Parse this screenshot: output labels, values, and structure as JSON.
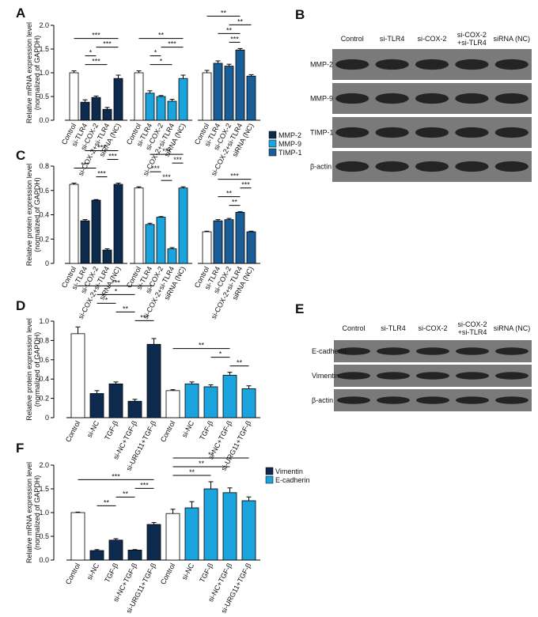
{
  "chart_data": [
    {
      "type": "bar",
      "panel_label": "A",
      "ylabel": [
        "Relative mRNA expression level",
        "(normalized of GAPDH)"
      ],
      "categories": [
        "Control",
        "si-TLR4",
        "si-COX-2",
        "si-COX-2+si-TLR4",
        "siRNA (NC)"
      ],
      "control_color": "#ffffff",
      "series": [
        {
          "name": "MMP-2",
          "color": "#0d2b4e",
          "values": [
            1.0,
            0.38,
            0.48,
            0.23,
            0.88
          ],
          "errors": [
            0.04,
            0.05,
            0.03,
            0.04,
            0.07
          ]
        },
        {
          "name": "MMP-9",
          "color": "#1aa3dc",
          "values": [
            1.0,
            0.57,
            0.5,
            0.4,
            0.88
          ],
          "errors": [
            0.04,
            0.05,
            0.02,
            0.04,
            0.07
          ]
        },
        {
          "name": "TIMP-1",
          "color": "#1a5e99",
          "values": [
            1.0,
            1.2,
            1.14,
            1.48,
            0.93
          ],
          "errors": [
            0.05,
            0.05,
            0.04,
            0.03,
            0.03
          ]
        }
      ],
      "ylim": [
        0,
        2
      ],
      "yticks": [
        {
          "value": 0,
          "label": "0.0"
        },
        0.5,
        {
          "value": 1,
          "label": "1.0"
        },
        1.5,
        {
          "value": 2,
          "label": "2.0"
        }
      ],
      "legend": false,
      "annotations": [
        {
          "series": 0,
          "between": [
            0,
            4
          ],
          "label": "***"
        },
        {
          "series": 0,
          "between": [
            2,
            4
          ],
          "label": "***"
        },
        {
          "series": 0,
          "between": [
            1,
            2
          ],
          "label": "*"
        },
        {
          "series": 0,
          "between": [
            1,
            3
          ],
          "label": "***"
        },
        {
          "series": 1,
          "between": [
            0,
            4
          ],
          "label": "**"
        },
        {
          "series": 1,
          "between": [
            2,
            4
          ],
          "label": "***"
        },
        {
          "series": 1,
          "between": [
            1,
            2
          ],
          "label": "*"
        },
        {
          "series": 1,
          "between": [
            1,
            3
          ],
          "label": "*"
        },
        {
          "series": 2,
          "between": [
            0,
            3
          ],
          "label": "**"
        },
        {
          "series": 2,
          "between": [
            2,
            4
          ],
          "label": "**"
        },
        {
          "series": 2,
          "between": [
            1,
            3
          ],
          "label": "**"
        },
        {
          "series": 2,
          "between": [
            2,
            3
          ],
          "label": "***"
        }
      ]
    },
    {
      "type": "bar",
      "panel_label": "C",
      "ylabel": [
        "Relative protein expression level",
        "(normalized of GAPDH)"
      ],
      "categories": [
        "Control",
        "si-TLR4",
        "si-COX-2",
        "si-COX-2+si-TLR4",
        "siRNA (NC)"
      ],
      "control_color": "#ffffff",
      "series": [
        {
          "name": "MMP-2",
          "color": "#0d2b4e",
          "values": [
            0.65,
            0.35,
            0.52,
            0.11,
            0.65
          ],
          "errors": [
            0.01,
            0.01,
            0.005,
            0.01,
            0.01
          ]
        },
        {
          "name": "MMP-9",
          "color": "#1aa3dc",
          "values": [
            0.62,
            0.32,
            0.38,
            0.12,
            0.62
          ],
          "errors": [
            0.01,
            0.01,
            0.005,
            0.01,
            0.01
          ]
        },
        {
          "name": "TIMP-1",
          "color": "#1a5e99",
          "values": [
            0.26,
            0.35,
            0.36,
            0.42,
            0.26
          ],
          "errors": [
            0.005,
            0.01,
            0.01,
            0.005,
            0.005
          ]
        }
      ],
      "ylim": [
        0,
        0.8
      ],
      "yticks": [
        0,
        0.2,
        0.4,
        0.6,
        0.8
      ],
      "legend": true,
      "annotations": [
        {
          "series": 0,
          "between": [
            1,
            4
          ],
          "label": "***"
        },
        {
          "series": 0,
          "between": [
            3,
            4
          ],
          "label": "***"
        },
        {
          "series": 0,
          "between": [
            0,
            2
          ],
          "label": "***"
        },
        {
          "series": 0,
          "between": [
            2,
            3
          ],
          "label": "***"
        },
        {
          "series": 1,
          "between": [
            1,
            4
          ],
          "label": "***"
        },
        {
          "series": 1,
          "between": [
            3,
            4
          ],
          "label": "***"
        },
        {
          "series": 1,
          "between": [
            1,
            2
          ],
          "label": "***"
        },
        {
          "series": 1,
          "between": [
            2,
            3
          ],
          "label": "***"
        },
        {
          "series": 2,
          "between": [
            1,
            4
          ],
          "label": "***"
        },
        {
          "series": 2,
          "between": [
            3,
            4
          ],
          "label": "***"
        },
        {
          "series": 2,
          "between": [
            1,
            3
          ],
          "label": "**"
        },
        {
          "series": 2,
          "between": [
            2,
            3
          ],
          "label": "**"
        }
      ]
    },
    {
      "type": "bar",
      "panel_label": "D",
      "ylabel": [
        "Relative protein expression level",
        "(normalized of GAPDH)"
      ],
      "categories": [
        "Control",
        "si-NC",
        "TGF-β",
        "si-NC+TGF-β",
        "si-URG11+TGF-β"
      ],
      "control_color": "#ffffff",
      "series": [
        {
          "name": "Vimentin",
          "color": "#0d2b4e",
          "values": [
            0.87,
            0.25,
            0.35,
            0.17,
            0.76
          ],
          "errors": [
            0.07,
            0.03,
            0.02,
            0.02,
            0.06
          ]
        },
        {
          "name": "E-cadherin",
          "color": "#1aa3dc",
          "values": [
            0.28,
            0.35,
            0.32,
            0.44,
            0.3
          ],
          "errors": [
            0.01,
            0.02,
            0.02,
            0.03,
            0.03
          ]
        }
      ],
      "ylim": [
        0,
        1
      ],
      "yticks": [
        0,
        0.2,
        0.4,
        0.6,
        0.8,
        {
          "value": 1,
          "label": "1.0"
        }
      ],
      "legend": false,
      "annotations": [
        {
          "series": 0,
          "between": [
            0,
            4
          ],
          "label": "***"
        },
        {
          "series": 0,
          "between": [
            1,
            3
          ],
          "label": "*"
        },
        {
          "series": 0,
          "between": [
            1,
            2
          ],
          "label": "*"
        },
        {
          "series": 0,
          "between": [
            2,
            3
          ],
          "label": "**"
        },
        {
          "series": 0,
          "between": [
            3,
            4
          ],
          "label": "***"
        },
        {
          "series": 1,
          "between": [
            0,
            3
          ],
          "label": "**"
        },
        {
          "series": 1,
          "between": [
            2,
            3
          ],
          "label": "*"
        },
        {
          "series": 1,
          "between": [
            3,
            4
          ],
          "label": "**"
        }
      ]
    },
    {
      "type": "bar",
      "panel_label": "F",
      "ylabel": [
        "Relative mRNA expression level",
        "(normalized of GAPDH)"
      ],
      "categories": [
        "Control",
        "si-NC",
        "TGF-β",
        "si-NC+TGF-β",
        "si-URG11+TGF-β"
      ],
      "control_color": "#ffffff",
      "series": [
        {
          "name": "Vimentin",
          "color": "#0d2b4e",
          "values": [
            1.0,
            0.2,
            0.42,
            0.21,
            0.75
          ],
          "errors": [
            0.01,
            0.02,
            0.03,
            0.01,
            0.04
          ]
        },
        {
          "name": "E-cadherin",
          "color": "#1aa3dc",
          "values": [
            0.98,
            1.1,
            1.5,
            1.42,
            1.25
          ],
          "errors": [
            0.09,
            0.13,
            0.15,
            0.1,
            0.08
          ]
        }
      ],
      "ylim": [
        0,
        2
      ],
      "yticks": [
        {
          "value": 0,
          "label": "0.0"
        },
        0.5,
        {
          "value": 1,
          "label": "1.0"
        },
        1.5,
        {
          "value": 2,
          "label": "2.0"
        }
      ],
      "legend": true,
      "annotations": [
        {
          "series": 0,
          "between": [
            0,
            4
          ],
          "label": "***"
        },
        {
          "series": 0,
          "between": [
            3,
            4
          ],
          "label": "***"
        },
        {
          "series": 0,
          "between": [
            2,
            3
          ],
          "label": "**"
        },
        {
          "series": 0,
          "between": [
            1,
            2
          ],
          "label": "**"
        },
        {
          "series": 1,
          "between": [
            0,
            4
          ],
          "label": "**"
        },
        {
          "series": 1,
          "between": [
            0,
            3
          ],
          "label": "**"
        },
        {
          "series": 1,
          "between": [
            0,
            2
          ],
          "label": "**"
        }
      ]
    }
  ],
  "blots": [
    {
      "panel_label": "B",
      "lanes": [
        [
          "Control"
        ],
        [
          "si-TLR4"
        ],
        [
          "si-COX-2"
        ],
        [
          "si-COX-2",
          "+si-TLR4"
        ],
        [
          "siRNA (NC)"
        ]
      ],
      "rows": [
        "MMP-2",
        "MMP-9",
        "TIMP-1",
        "β-actin"
      ]
    },
    {
      "panel_label": "E",
      "lanes": [
        [
          "Control"
        ],
        [
          "si-TLR4"
        ],
        [
          "si-COX-2"
        ],
        [
          "si-COX-2",
          "+si-TLR4"
        ],
        [
          "siRNA (NC)"
        ]
      ],
      "rows": [
        "E-cadherin",
        "Vimentin",
        "β-actin"
      ]
    }
  ]
}
